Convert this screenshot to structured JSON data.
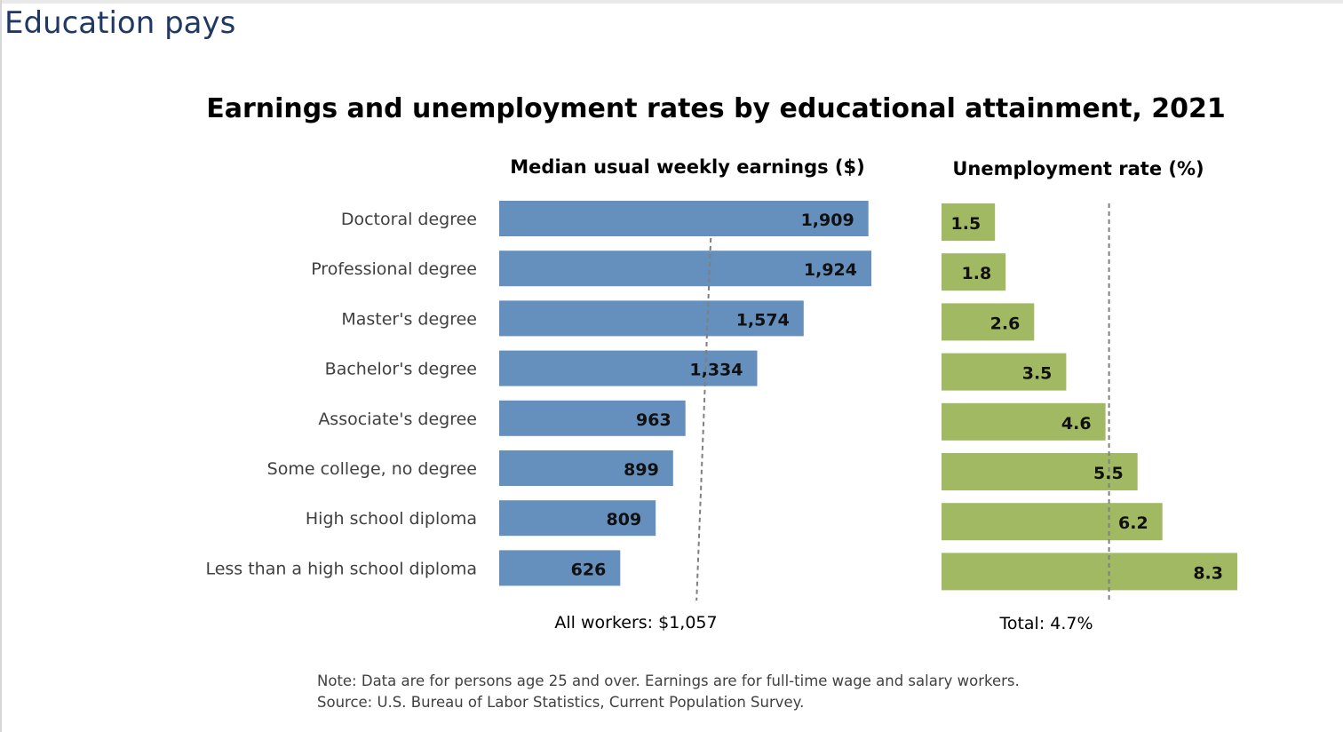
{
  "page": {
    "title": "Education pays"
  },
  "chart_data": {
    "type": "bar",
    "orientation": "horizontal",
    "title": "Earnings and unemployment rates by educational attainment, 2021",
    "categories": [
      "Doctoral degree",
      "Professional degree",
      "Master's degree",
      "Bachelor's degree",
      "Associate's degree",
      "Some college, no degree",
      "High school diploma",
      "Less than a high school diploma"
    ],
    "series": [
      {
        "name": "Median usual weekly earnings ($)",
        "values": [
          1909,
          1924,
          1574,
          1334,
          963,
          899,
          809,
          626
        ],
        "labels": [
          "1,909",
          "1,924",
          "1,574",
          "1,334",
          "963",
          "899",
          "809",
          "626"
        ],
        "color": "#658fbd",
        "reference_value": 1057,
        "reference_label": "All workers: $1,057",
        "xlim": [
          0,
          1924
        ]
      },
      {
        "name": "Unemployment rate (%)",
        "values": [
          1.5,
          1.8,
          2.6,
          3.5,
          4.6,
          5.5,
          6.2,
          8.3
        ],
        "labels": [
          "1.5",
          "1.8",
          "2.6",
          "3.5",
          "4.6",
          "5.5",
          "6.2",
          "8.3"
        ],
        "color": "#a2b964",
        "reference_value": 4.7,
        "reference_label": "Total: 4.7%",
        "xlim": [
          0,
          8.3
        ]
      }
    ],
    "notes": [
      "Note: Data are for persons age 25 and over. Earnings are for full-time wage and salary workers.",
      "Source: U.S. Bureau of Labor Statistics, Current Population Survey."
    ]
  }
}
